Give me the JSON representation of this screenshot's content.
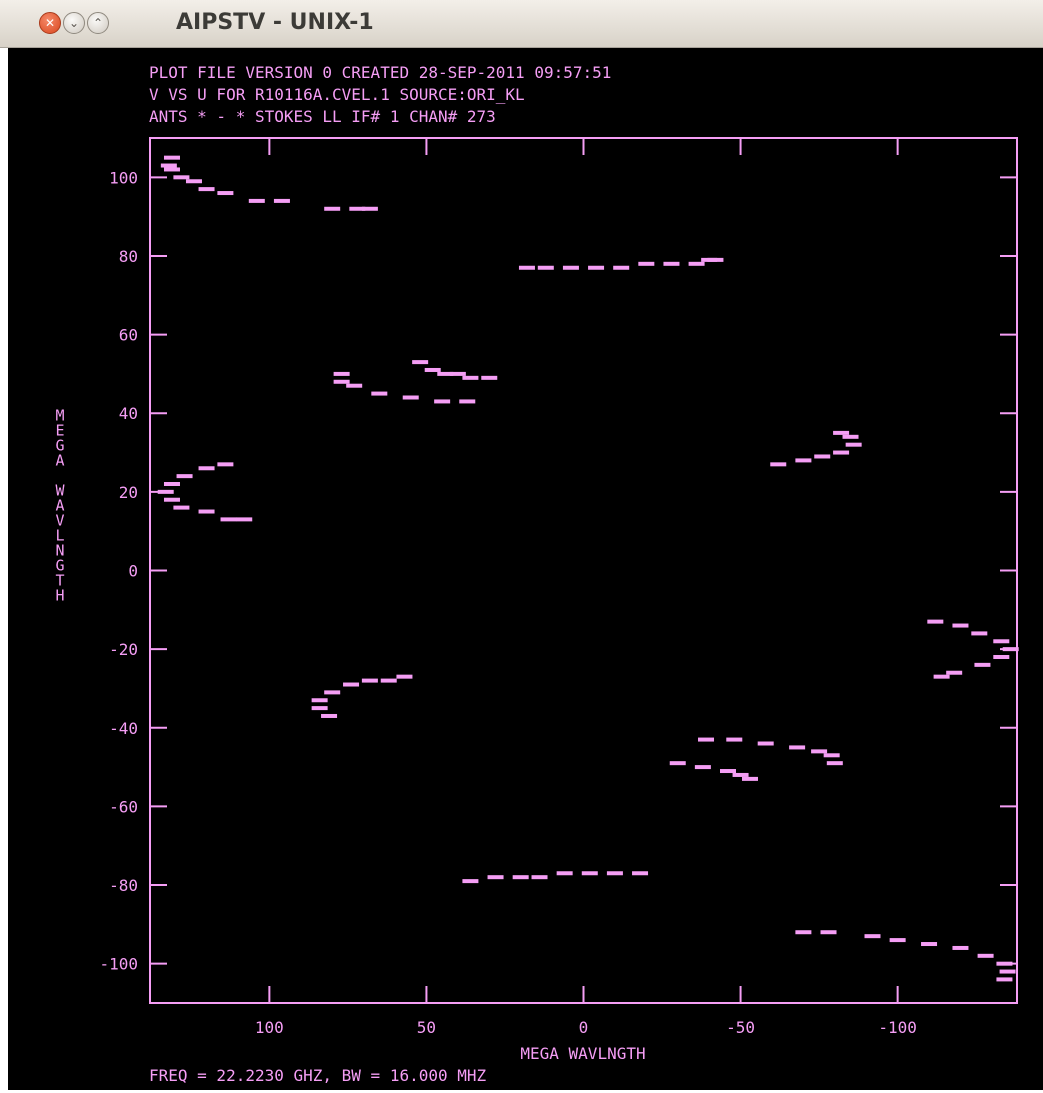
{
  "window": {
    "title": "AIPSTV - UNIX-1",
    "buttons": {
      "close": "close-icon",
      "minimize": "minimize-icon",
      "maximize": "maximize-icon"
    }
  },
  "colors": {
    "plot": "#f59ef5",
    "background": "#000000"
  },
  "chart_data": {
    "type": "scatter",
    "header": [
      "PLOT FILE VERSION 0  CREATED 28-SEP-2011 09:57:51",
      "V VS U FOR R10116A.CVEL.1   SOURCE:ORI_KL",
      "ANTS * - *    STOKES LL  IF# 1  CHAN# 273"
    ],
    "xlabel": "MEGA WAVLNGTH",
    "ylabel": "MEGA WAVLNGTH",
    "footer": "FREQ = 22.2230 GHZ, BW = 16.000 MHZ",
    "xlim": [
      138,
      -138
    ],
    "ylim": [
      -110,
      110
    ],
    "x_ticks": [
      100,
      50,
      0,
      -50,
      -100
    ],
    "x_tick_labels": [
      "100",
      "50",
      "0",
      "-50",
      "-100"
    ],
    "y_ticks": [
      100,
      80,
      60,
      40,
      20,
      0,
      -20,
      -40,
      -60,
      -80,
      -100
    ],
    "y_tick_labels": [
      "100",
      "80",
      "60",
      "40",
      "20",
      "0",
      "-20",
      "-40",
      "-60",
      "-80",
      "-100"
    ],
    "grid": false,
    "series": [
      {
        "points": [
          [
            132,
            103
          ],
          [
            131,
            105
          ],
          [
            131,
            102
          ],
          [
            128,
            100
          ],
          [
            124,
            99
          ],
          [
            120,
            97
          ],
          [
            114,
            96
          ],
          [
            104,
            94
          ],
          [
            96,
            94
          ],
          [
            80,
            92
          ],
          [
            72,
            92
          ],
          [
            68,
            92
          ]
        ]
      },
      {
        "points": [
          [
            18,
            77
          ],
          [
            12,
            77
          ],
          [
            4,
            77
          ],
          [
            -4,
            77
          ],
          [
            -12,
            77
          ],
          [
            -20,
            78
          ],
          [
            -28,
            78
          ],
          [
            -36,
            78
          ],
          [
            -40,
            79
          ],
          [
            -42,
            79
          ]
        ]
      },
      {
        "points": [
          [
            52,
            53
          ],
          [
            48,
            51
          ],
          [
            44,
            50
          ],
          [
            40,
            50
          ],
          [
            36,
            49
          ],
          [
            30,
            49
          ]
        ]
      },
      {
        "points": [
          [
            77,
            50
          ],
          [
            77,
            48
          ],
          [
            73,
            47
          ],
          [
            65,
            45
          ],
          [
            55,
            44
          ],
          [
            45,
            43
          ],
          [
            37,
            43
          ]
        ]
      },
      {
        "points": [
          [
            -62,
            27
          ],
          [
            -70,
            28
          ],
          [
            -76,
            29
          ],
          [
            -82,
            30
          ],
          [
            -86,
            32
          ],
          [
            -85,
            34
          ],
          [
            -82,
            35
          ]
        ]
      },
      {
        "points": [
          [
            114,
            27
          ],
          [
            120,
            26
          ],
          [
            127,
            24
          ],
          [
            131,
            22
          ],
          [
            133,
            20
          ],
          [
            131,
            18
          ],
          [
            128,
            16
          ],
          [
            120,
            15
          ],
          [
            113,
            13
          ],
          [
            108,
            13
          ]
        ]
      },
      {
        "points": [
          [
            -112,
            -13
          ],
          [
            -120,
            -14
          ],
          [
            -126,
            -16
          ],
          [
            -133,
            -18
          ],
          [
            -136,
            -20
          ],
          [
            -133,
            -22
          ],
          [
            -127,
            -24
          ],
          [
            -118,
            -26
          ],
          [
            -114,
            -27
          ]
        ]
      },
      {
        "points": [
          [
            57,
            -27
          ],
          [
            62,
            -28
          ],
          [
            68,
            -28
          ],
          [
            74,
            -29
          ],
          [
            80,
            -31
          ],
          [
            84,
            -33
          ],
          [
            84,
            -35
          ],
          [
            81,
            -37
          ]
        ]
      },
      {
        "points": [
          [
            -39,
            -43
          ],
          [
            -48,
            -43
          ],
          [
            -58,
            -44
          ],
          [
            -68,
            -45
          ],
          [
            -75,
            -46
          ],
          [
            -79,
            -47
          ],
          [
            -80,
            -49
          ]
        ]
      },
      {
        "points": [
          [
            -30,
            -49
          ],
          [
            -38,
            -50
          ],
          [
            -46,
            -51
          ],
          [
            -50,
            -52
          ],
          [
            -53,
            -53
          ]
        ]
      },
      {
        "points": [
          [
            -18,
            -77
          ],
          [
            -10,
            -77
          ],
          [
            -2,
            -77
          ],
          [
            6,
            -77
          ],
          [
            14,
            -78
          ],
          [
            20,
            -78
          ],
          [
            28,
            -78
          ],
          [
            36,
            -79
          ]
        ]
      },
      {
        "points": [
          [
            -70,
            -92
          ],
          [
            -78,
            -92
          ],
          [
            -92,
            -93
          ],
          [
            -100,
            -94
          ],
          [
            -110,
            -95
          ],
          [
            -120,
            -96
          ],
          [
            -128,
            -98
          ],
          [
            -134,
            -100
          ],
          [
            -135,
            -102
          ],
          [
            -134,
            -104
          ]
        ]
      }
    ]
  }
}
